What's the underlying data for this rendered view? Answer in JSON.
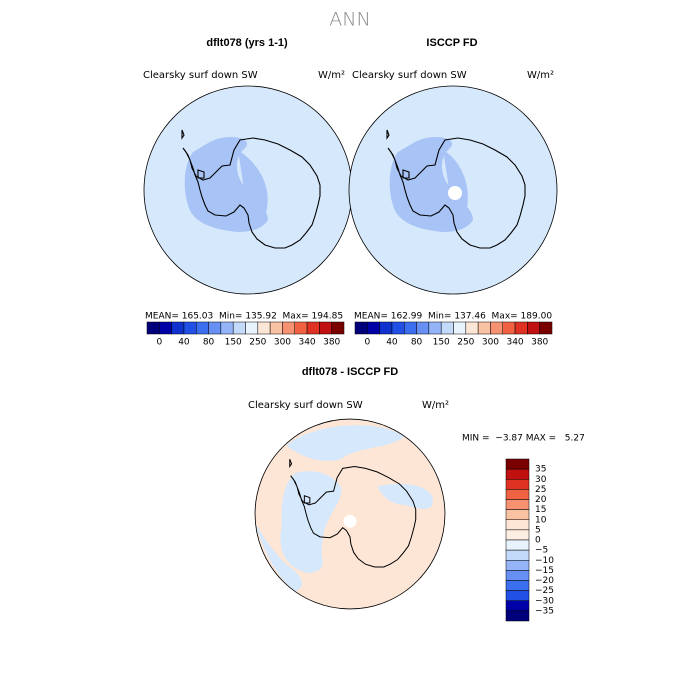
{
  "title": "ANN",
  "panels": [
    {
      "title": "dflt078 (yrs 1-1)",
      "field": "Clearsky surf down SW",
      "units": "W/m²",
      "stats": "MEAN= 165.03  Min= 135.92  Max= 194.85"
    },
    {
      "title": "ISCCP FD",
      "field": "Clearsky surf down SW",
      "units": "W/m²",
      "stats": "MEAN= 162.99  Min= 137.46  Max= 189.00"
    },
    {
      "title": "dflt078 - ISCCP FD",
      "field": "Clearsky surf down SW",
      "units": "W/m²",
      "stats": "MIN =  −3.87 MAX =   5.27"
    }
  ],
  "colorbar": {
    "colors": [
      "#00007a",
      "#0000a8",
      "#1030d0",
      "#2050e6",
      "#3c6ef0",
      "#6690f4",
      "#94b4f7",
      "#c4dafb",
      "#e9f3fd",
      "#fde6d6",
      "#f9c2a2",
      "#f69272",
      "#f06242",
      "#e03222",
      "#c01010",
      "#7a0000"
    ],
    "labels": [
      "0",
      "40",
      "80",
      "150",
      "250",
      "300",
      "340",
      "380"
    ]
  },
  "diff_colorbar": {
    "colors": [
      "#7a0000",
      "#c01010",
      "#e03222",
      "#f06242",
      "#f69272",
      "#f9c2a2",
      "#fde6d6",
      "#fdeee4",
      "#e9f3fd",
      "#c4dafb",
      "#94b4f7",
      "#6690f4",
      "#3c6ef0",
      "#2050e6",
      "#0000a8",
      "#00007a"
    ],
    "labels": [
      "35",
      "30",
      "25",
      "20",
      "15",
      "10",
      "5",
      "0",
      "−5",
      "−10",
      "−15",
      "−20",
      "−25",
      "−30",
      "−35"
    ]
  }
}
